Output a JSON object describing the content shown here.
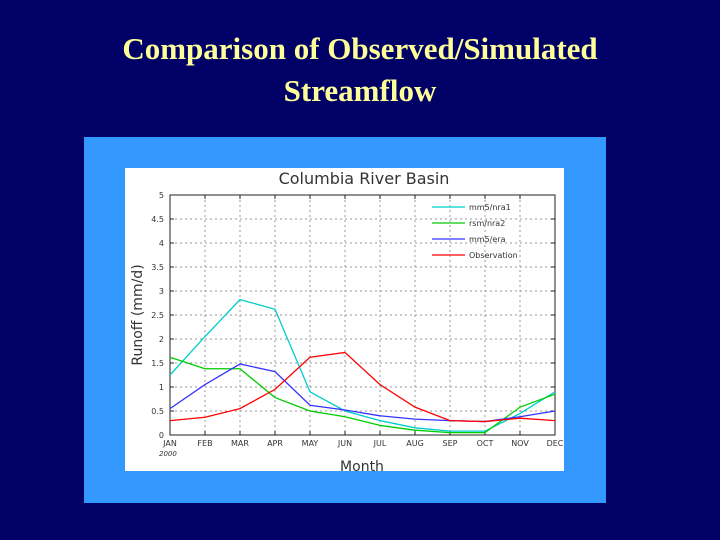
{
  "slide": {
    "title_line1": "Comparison of Observed/Simulated",
    "title_line2": "Streamflow"
  },
  "colors": {
    "background": "#000066",
    "frame": "#3399ff",
    "title": "#ffff99"
  },
  "chart_data": {
    "type": "line",
    "title": "Columbia River Basin",
    "xlabel": "Month",
    "ylabel": "Runoff (mm/d)",
    "categories": [
      "JAN",
      "FEB",
      "MAR",
      "APR",
      "MAY",
      "JUN",
      "JUL",
      "AUG",
      "SEP",
      "OCT",
      "NOV",
      "DEC"
    ],
    "year_label": "2000",
    "ylim": [
      0,
      5
    ],
    "yticks": [
      "0",
      "0.5",
      "1",
      "1.5",
      "2",
      "2.5",
      "3",
      "3.5",
      "4",
      "4.5",
      "5"
    ],
    "grid": true,
    "legend_position": "top-right",
    "series": [
      {
        "name": "mm5/nra1",
        "color": "#00cccc",
        "values": [
          1.25,
          2.05,
          2.82,
          2.62,
          0.9,
          0.5,
          0.3,
          0.15,
          0.08,
          0.08,
          0.45,
          0.9
        ]
      },
      {
        "name": "rsm/nra2",
        "color": "#00cc00",
        "values": [
          1.62,
          1.38,
          1.38,
          0.78,
          0.5,
          0.38,
          0.2,
          0.1,
          0.05,
          0.05,
          0.58,
          0.85
        ]
      },
      {
        "name": "mm5/era",
        "color": "#3333ff",
        "values": [
          0.55,
          1.05,
          1.48,
          1.32,
          0.62,
          0.52,
          0.4,
          0.33,
          0.3,
          0.28,
          0.38,
          0.5
        ]
      },
      {
        "name": "Observation",
        "color": "#ff0000",
        "values": [
          0.3,
          0.37,
          0.55,
          0.95,
          1.62,
          1.72,
          1.05,
          0.58,
          0.3,
          0.28,
          0.35,
          0.3
        ]
      }
    ]
  }
}
